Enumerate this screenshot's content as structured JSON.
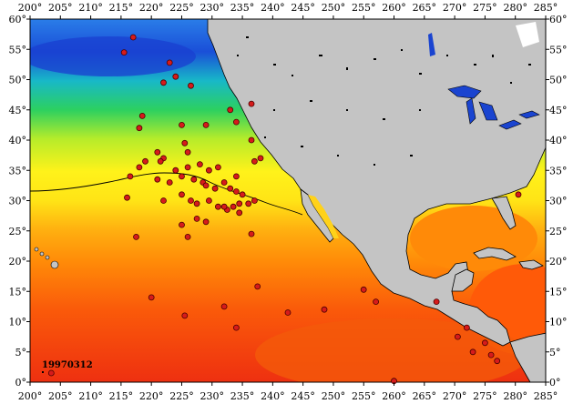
{
  "map": {
    "date_label": "19970312",
    "x_ticks": [
      "200°",
      "205°",
      "210°",
      "215°",
      "220°",
      "225°",
      "230°",
      "235°",
      "240°",
      "245°",
      "250°",
      "255°",
      "260°",
      "265°",
      "270°",
      "275°",
      "280°",
      "285°"
    ],
    "y_ticks": [
      "0°",
      "5°",
      "10°",
      "15°",
      "20°",
      "25°",
      "30°",
      "35°",
      "40°",
      "45°",
      "50°",
      "55°",
      "60°"
    ],
    "lon_range": [
      200,
      285
    ],
    "lat_range": [
      0,
      60
    ],
    "colors": {
      "land": "#c4c4c4",
      "great_lakes": "#1a44d0",
      "station_marker": "#d61b1b",
      "station_marker_outline": "#4a0000",
      "sst_cold": "#1a4fe0",
      "sst_warm": "#e83010"
    }
  },
  "chart_data": {
    "type": "scatter",
    "title": "",
    "xlabel": "",
    "ylabel": "",
    "xlim": [
      200,
      285
    ],
    "ylim": [
      0,
      60
    ],
    "grid": false,
    "series": [
      {
        "x": [
          217.0,
          215.5,
          223.0,
          224.0,
          222.0,
          226.5,
          236.5,
          218.5,
          229.0,
          225.0,
          233.0,
          234.0,
          218.0,
          221.0,
          225.5,
          226.0,
          219.0,
          222.0,
          228.0,
          229.5,
          231.0,
          234.0,
          237.0,
          238.0,
          221.5,
          224.0,
          225.0,
          226.0,
          227.0,
          228.5,
          229.0,
          230.5,
          232.0,
          233.0,
          234.0,
          235.0,
          218.0,
          216.5,
          221.0,
          223.0,
          225.0,
          226.5,
          227.5,
          229.5,
          231.0,
          232.5,
          233.5,
          234.5,
          236.0,
          237.0,
          236.5,
          227.5,
          229.0,
          232.0,
          234.5,
          216.0,
          222.0,
          225.0,
          226.0,
          217.5,
          236.5,
          220.0,
          232.0,
          234.0,
          225.5,
          242.5,
          237.5,
          248.5,
          255.0,
          257.0,
          267.0,
          270.5,
          273.0,
          275.0,
          276.0,
          277.0,
          272.0,
          280.5,
          260.0,
          203.5
        ],
        "y": [
          57.0,
          54.5,
          52.8,
          50.5,
          49.5,
          49.0,
          46.0,
          44.0,
          42.5,
          42.5,
          45.0,
          43.0,
          42.0,
          38.0,
          39.5,
          38.0,
          36.5,
          37.0,
          36.0,
          35.0,
          35.5,
          34.0,
          36.5,
          37.0,
          36.5,
          35.0,
          34.0,
          35.5,
          33.5,
          33.0,
          32.5,
          32.0,
          33.0,
          32.0,
          31.5,
          31.0,
          35.5,
          34.0,
          33.5,
          33.0,
          31.0,
          30.0,
          29.5,
          30.0,
          29.0,
          28.5,
          29.0,
          29.5,
          29.5,
          30.0,
          24.5,
          27.0,
          26.5,
          29.0,
          28.0,
          30.5,
          30.0,
          26.0,
          24.0,
          24.0,
          40.0,
          14.0,
          12.5,
          9.0,
          11.0,
          11.5,
          15.8,
          12.0,
          15.3,
          13.3,
          13.3,
          7.5,
          5.0,
          6.5,
          4.5,
          3.5,
          9.0,
          31.0,
          0.2,
          1.5
        ]
      }
    ]
  }
}
